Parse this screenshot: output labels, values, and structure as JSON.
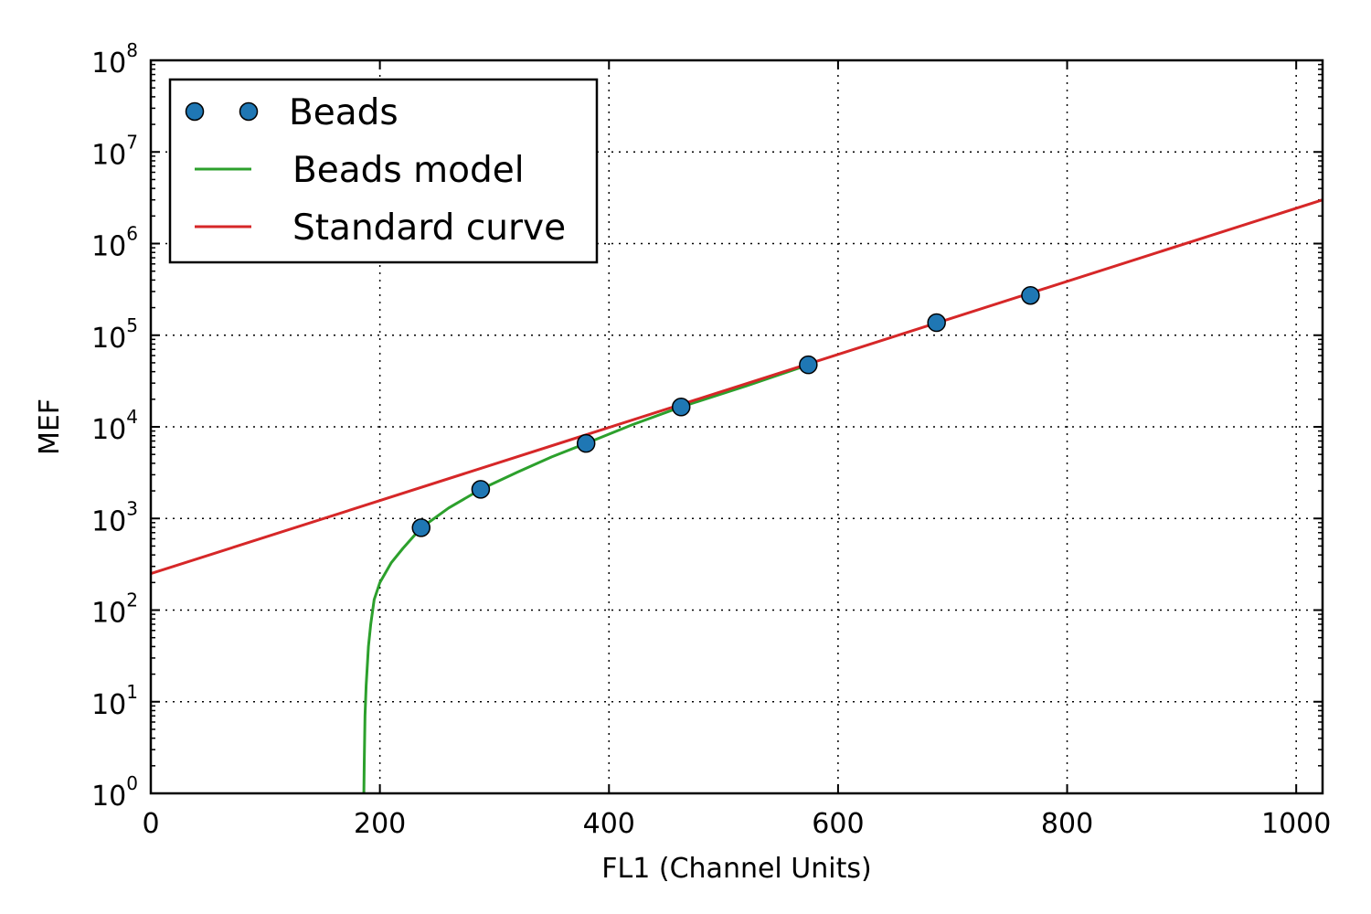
{
  "chart_data": {
    "type": "line",
    "xlabel": "FL1 (Channel Units)",
    "ylabel": "MEF",
    "xlim": [
      0,
      1023
    ],
    "ylim": [
      1,
      100000000
    ],
    "y_scale": "log",
    "grid": true,
    "legend_position": "top-left",
    "x_ticks": [
      "0",
      "200",
      "400",
      "600",
      "800",
      "1000"
    ],
    "y_ticks": [
      {
        "base": "10",
        "exp": "0"
      },
      {
        "base": "10",
        "exp": "1"
      },
      {
        "base": "10",
        "exp": "2"
      },
      {
        "base": "10",
        "exp": "3"
      },
      {
        "base": "10",
        "exp": "4"
      },
      {
        "base": "10",
        "exp": "5"
      },
      {
        "base": "10",
        "exp": "6"
      },
      {
        "base": "10",
        "exp": "7"
      },
      {
        "base": "10",
        "exp": "8"
      }
    ],
    "series": [
      {
        "name": "Beads",
        "kind": "scatter",
        "color": "#1f77b4",
        "x": [
          236,
          288,
          380,
          463,
          574,
          686,
          768
        ],
        "y": [
          792,
          2079,
          6588,
          16471,
          47497,
          137049,
          271647
        ]
      },
      {
        "name": "Beads model",
        "kind": "line",
        "color": "#2ca02c",
        "x": [
          186,
          186.3,
          187,
          188,
          190,
          192,
          195,
          200,
          210,
          220,
          236,
          260,
          288,
          320,
          350,
          380,
          420,
          463,
          520,
          574
        ],
        "y": [
          1,
          2,
          7,
          15,
          40,
          70,
          130,
          200,
          330,
          470,
          790,
          1300,
          2080,
          3200,
          4700,
          6600,
          10500,
          16500,
          28000,
          47500
        ]
      },
      {
        "name": "Standard curve",
        "kind": "line",
        "color": "#d62728",
        "x": [
          0,
          1023
        ],
        "y": [
          250,
          3000000
        ]
      }
    ]
  }
}
